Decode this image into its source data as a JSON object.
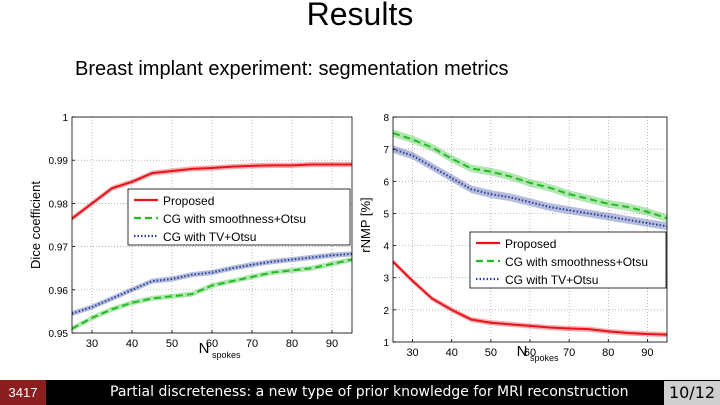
{
  "slide": {
    "title": "Results",
    "subtitle": "Breast implant experiment: segmentation metrics"
  },
  "footer": {
    "slide_id": "3417",
    "text": "Partial discreteness: a new type of prior knowledge for MRI reconstruction",
    "page": "10/12"
  },
  "colors": {
    "proposed": "#e8141b",
    "smooth": "#22bb22",
    "tv": "#2a3f9a"
  },
  "chart_data": [
    {
      "type": "line",
      "xlabel": "N",
      "xlabel_sub": "spokes",
      "ylabel": "Dice coefficient",
      "xlim": [
        25,
        95
      ],
      "ylim": [
        0.95,
        1
      ],
      "xticks": [
        "30",
        "40",
        "50",
        "60",
        "70",
        "80",
        "90"
      ],
      "yticks": [
        "1",
        "0.99",
        "0.98",
        "0.97",
        "0.96",
        "0.95"
      ],
      "grid": true,
      "legend_position": "center-right",
      "x": [
        25,
        30,
        35,
        40,
        45,
        50,
        55,
        60,
        65,
        70,
        75,
        80,
        85,
        90,
        95
      ],
      "series": [
        {
          "name": "Proposed",
          "style": "solid",
          "values": [
            0.9765,
            0.98,
            0.9835,
            0.985,
            0.987,
            0.9875,
            0.988,
            0.9882,
            0.9885,
            0.9887,
            0.9888,
            0.9888,
            0.989,
            0.989,
            0.989
          ]
        },
        {
          "name": "CG with smoothness+Otsu",
          "style": "dashed",
          "values": [
            0.951,
            0.9535,
            0.9555,
            0.957,
            0.958,
            0.9585,
            0.959,
            0.961,
            0.962,
            0.963,
            0.964,
            0.9645,
            0.965,
            0.966,
            0.967
          ]
        },
        {
          "name": "CG with TV+Otsu",
          "style": "dotted",
          "values": [
            0.9545,
            0.956,
            0.958,
            0.96,
            0.962,
            0.9625,
            0.9635,
            0.964,
            0.965,
            0.9658,
            0.9665,
            0.967,
            0.9675,
            0.968,
            0.9683
          ]
        }
      ]
    },
    {
      "type": "line",
      "xlabel": "N",
      "xlabel_sub": "spokes",
      "ylabel": "rNMP [%]",
      "xlim": [
        25,
        95
      ],
      "ylim": [
        1,
        8
      ],
      "xticks": [
        "30",
        "40",
        "50",
        "60",
        "70",
        "80",
        "90"
      ],
      "yticks": [
        "8",
        "7",
        "6",
        "5",
        "4",
        "3",
        "2",
        "1"
      ],
      "grid": true,
      "legend_position": "center-right",
      "x": [
        25,
        30,
        35,
        40,
        45,
        50,
        55,
        60,
        65,
        70,
        75,
        80,
        85,
        90,
        95
      ],
      "series": [
        {
          "name": "Proposed",
          "style": "solid",
          "values": [
            3.5,
            2.9,
            2.35,
            2.0,
            1.7,
            1.6,
            1.55,
            1.5,
            1.45,
            1.42,
            1.4,
            1.33,
            1.28,
            1.25,
            1.23
          ]
        },
        {
          "name": "CG with smoothness+Otsu",
          "style": "dashed",
          "values": [
            7.5,
            7.3,
            7.05,
            6.7,
            6.4,
            6.3,
            6.15,
            5.95,
            5.8,
            5.6,
            5.45,
            5.3,
            5.2,
            5.05,
            4.85
          ]
        },
        {
          "name": "CG with TV+Otsu",
          "style": "dotted",
          "values": [
            7.0,
            6.8,
            6.45,
            6.1,
            5.75,
            5.6,
            5.5,
            5.35,
            5.2,
            5.1,
            5.0,
            4.9,
            4.8,
            4.7,
            4.6
          ]
        }
      ]
    }
  ]
}
